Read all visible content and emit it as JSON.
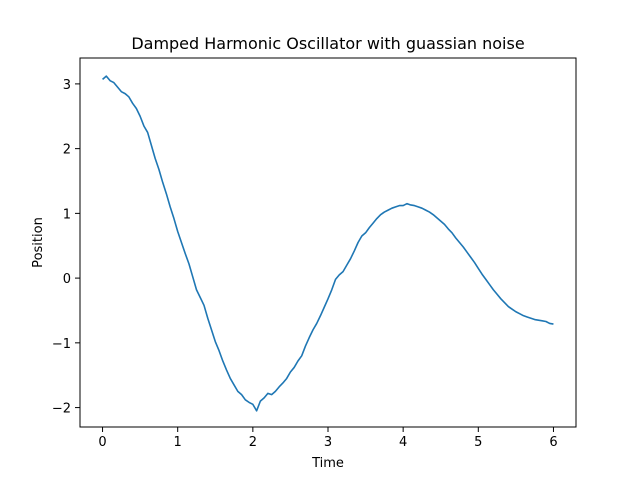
{
  "chart_data": {
    "type": "line",
    "title": "Damped Harmonic Oscillator with guassian noise",
    "xlabel": "Time",
    "ylabel": "Position",
    "xlim": [
      -0.3,
      6.3
    ],
    "ylim": [
      -2.3,
      3.4
    ],
    "grid": false,
    "colors": {
      "line": "#1f77b4",
      "axes": "#000000",
      "background": "#ffffff"
    },
    "x_ticks": [
      {
        "value": 0,
        "label": "0"
      },
      {
        "value": 1,
        "label": "1"
      },
      {
        "value": 2,
        "label": "2"
      },
      {
        "value": 3,
        "label": "3"
      },
      {
        "value": 4,
        "label": "4"
      },
      {
        "value": 5,
        "label": "5"
      },
      {
        "value": 6,
        "label": "6"
      }
    ],
    "y_ticks": [
      {
        "value": -2,
        "label": "−2"
      },
      {
        "value": -1,
        "label": "−1"
      },
      {
        "value": 0,
        "label": "0"
      },
      {
        "value": 1,
        "label": "1"
      },
      {
        "value": 2,
        "label": "2"
      },
      {
        "value": 3,
        "label": "3"
      }
    ],
    "series": [
      {
        "x": [
          0.0,
          0.05,
          0.1,
          0.15,
          0.2,
          0.25,
          0.3,
          0.35,
          0.4,
          0.45,
          0.5,
          0.55,
          0.6,
          0.65,
          0.7,
          0.75,
          0.8,
          0.85,
          0.9,
          0.95,
          1.0,
          1.05,
          1.1,
          1.15,
          1.2,
          1.25,
          1.3,
          1.35,
          1.4,
          1.45,
          1.5,
          1.55,
          1.6,
          1.65,
          1.7,
          1.75,
          1.8,
          1.85,
          1.9,
          1.95,
          2.0,
          2.05,
          2.1,
          2.15,
          2.2,
          2.25,
          2.3,
          2.35,
          2.4,
          2.45,
          2.5,
          2.55,
          2.6,
          2.65,
          2.7,
          2.75,
          2.8,
          2.85,
          2.9,
          2.95,
          3.0,
          3.05,
          3.1,
          3.15,
          3.2,
          3.25,
          3.3,
          3.35,
          3.4,
          3.45,
          3.5,
          3.55,
          3.6,
          3.65,
          3.7,
          3.75,
          3.8,
          3.85,
          3.9,
          3.95,
          4.0,
          4.05,
          4.1,
          4.15,
          4.2,
          4.25,
          4.3,
          4.35,
          4.4,
          4.45,
          4.5,
          4.55,
          4.6,
          4.65,
          4.7,
          4.75,
          4.8,
          4.85,
          4.9,
          4.95,
          5.0,
          5.05,
          5.1,
          5.15,
          5.2,
          5.25,
          5.3,
          5.35,
          5.4,
          5.45,
          5.5,
          5.55,
          5.6,
          5.65,
          5.7,
          5.75,
          5.8,
          5.85,
          5.9,
          5.95,
          6.0
        ],
        "y": [
          3.07,
          3.12,
          3.05,
          3.02,
          2.95,
          2.88,
          2.85,
          2.8,
          2.7,
          2.62,
          2.5,
          2.35,
          2.25,
          2.05,
          1.85,
          1.68,
          1.48,
          1.3,
          1.1,
          0.92,
          0.72,
          0.55,
          0.38,
          0.22,
          0.02,
          -0.18,
          -0.3,
          -0.42,
          -0.62,
          -0.8,
          -0.98,
          -1.12,
          -1.28,
          -1.42,
          -1.55,
          -1.65,
          -1.75,
          -1.8,
          -1.88,
          -1.92,
          -1.95,
          -2.05,
          -1.9,
          -1.85,
          -1.78,
          -1.8,
          -1.75,
          -1.68,
          -1.62,
          -1.55,
          -1.45,
          -1.38,
          -1.28,
          -1.2,
          -1.05,
          -0.92,
          -0.8,
          -0.7,
          -0.58,
          -0.45,
          -0.32,
          -0.18,
          -0.02,
          0.05,
          0.1,
          0.2,
          0.3,
          0.42,
          0.55,
          0.65,
          0.7,
          0.78,
          0.85,
          0.92,
          0.98,
          1.02,
          1.05,
          1.08,
          1.1,
          1.12,
          1.12,
          1.15,
          1.13,
          1.12,
          1.1,
          1.08,
          1.05,
          1.02,
          0.98,
          0.93,
          0.88,
          0.83,
          0.76,
          0.7,
          0.62,
          0.55,
          0.48,
          0.4,
          0.32,
          0.24,
          0.15,
          0.06,
          -0.02,
          -0.1,
          -0.18,
          -0.25,
          -0.32,
          -0.38,
          -0.44,
          -0.48,
          -0.52,
          -0.55,
          -0.58,
          -0.6,
          -0.62,
          -0.64,
          -0.65,
          -0.66,
          -0.67,
          -0.7,
          -0.71
        ]
      }
    ]
  }
}
